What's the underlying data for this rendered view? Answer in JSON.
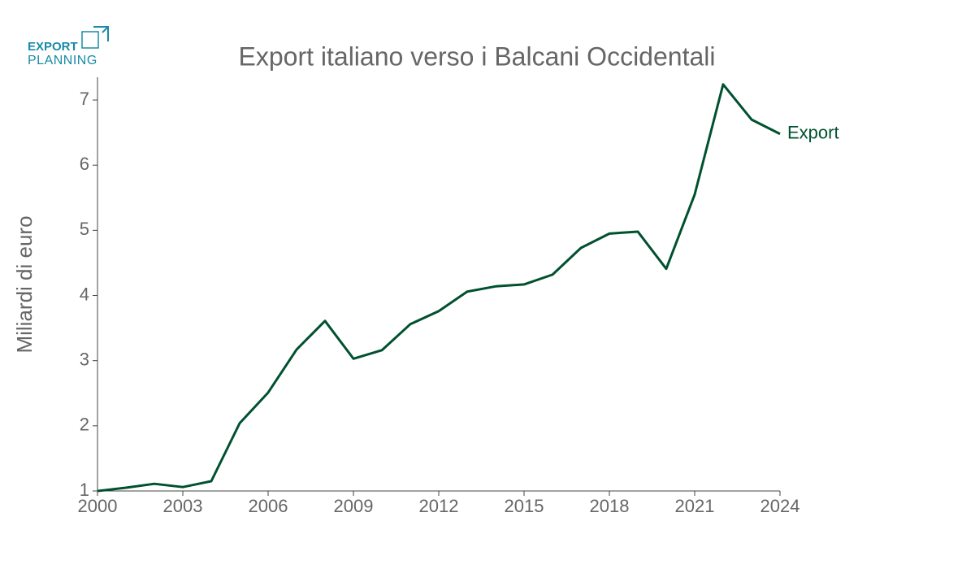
{
  "logo": {
    "line1": "EXPORT",
    "line2": "PLANNING"
  },
  "chart_data": {
    "type": "line",
    "title": "Export italiano verso i Balcani Occidentali",
    "y_label": "Miliardi di euro",
    "x": [
      2000,
      2001,
      2002,
      2003,
      2004,
      2005,
      2006,
      2007,
      2008,
      2009,
      2010,
      2011,
      2012,
      2013,
      2014,
      2015,
      2016,
      2017,
      2018,
      2019,
      2020,
      2021,
      2022,
      2023,
      2024
    ],
    "series": [
      {
        "name": "Export",
        "color": "#00512f",
        "values": [
          1.0,
          1.05,
          1.11,
          1.06,
          1.15,
          2.04,
          2.51,
          3.17,
          3.61,
          3.03,
          3.16,
          3.56,
          3.76,
          4.06,
          4.14,
          4.17,
          4.32,
          4.73,
          4.95,
          4.98,
          4.41,
          5.55,
          7.24,
          6.7,
          6.48
        ]
      }
    ],
    "xlim": [
      2000,
      2024
    ],
    "xticks": [
      2000,
      2003,
      2006,
      2009,
      2012,
      2015,
      2018,
      2021,
      2024
    ],
    "ylim": [
      1,
      7.35
    ],
    "yticks": [
      1,
      2,
      3,
      4,
      5,
      6,
      7
    ],
    "grid": false
  }
}
